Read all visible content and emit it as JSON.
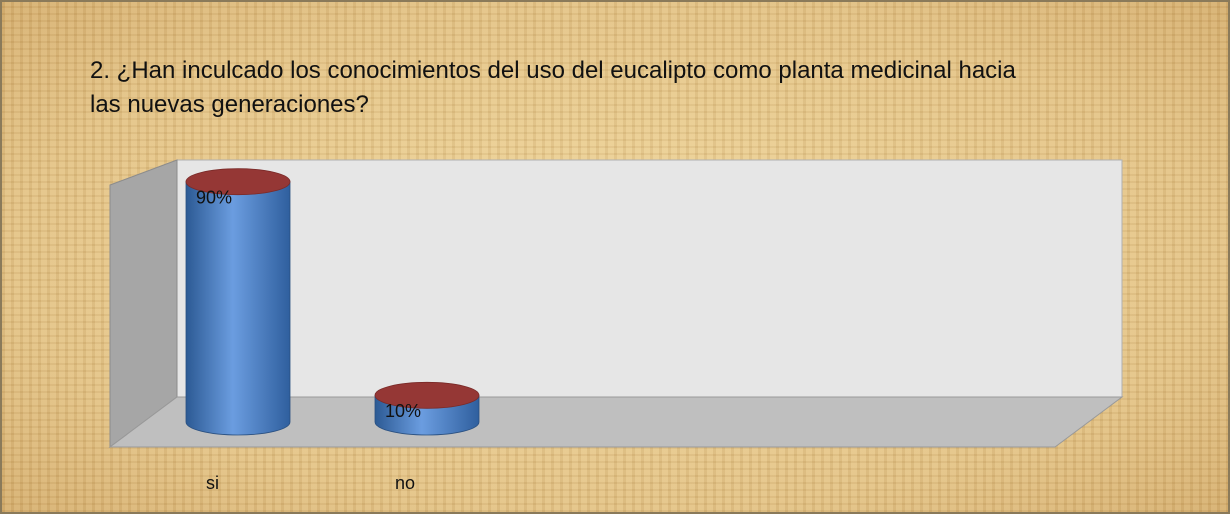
{
  "chart_data": {
    "type": "bar3d",
    "title": "2. ¿Han inculcado los conocimientos del uso del eucalipto como planta medicinal hacia las nuevas generaciones?",
    "categories": [
      "si",
      "no"
    ],
    "values": [
      90,
      10
    ],
    "value_labels": [
      "90%",
      "10%"
    ],
    "color": "#4f81bd",
    "top_color": "#953735",
    "ylim": [
      0,
      100
    ]
  }
}
